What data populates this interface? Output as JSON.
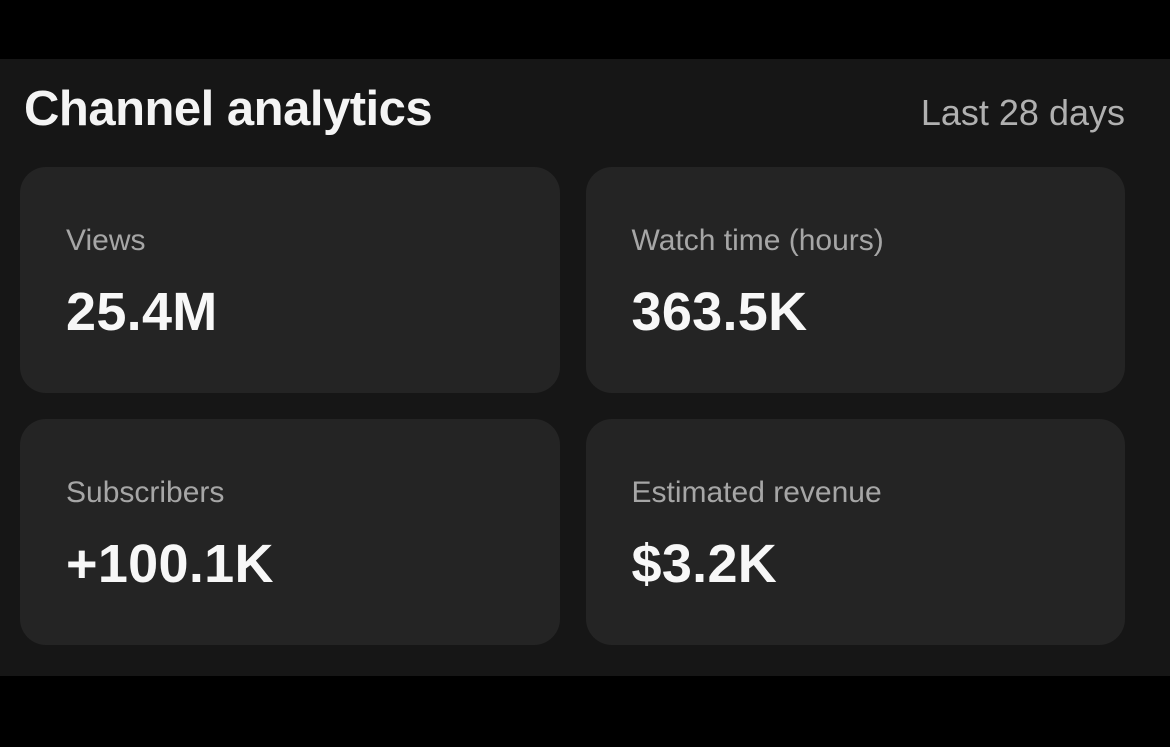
{
  "header": {
    "title": "Channel analytics",
    "period": "Last 28 days"
  },
  "cards": [
    {
      "label": "Views",
      "value": "25.4M"
    },
    {
      "label": "Watch time (hours)",
      "value": "363.5K"
    },
    {
      "label": "Subscribers",
      "value": "+100.1K"
    },
    {
      "label": "Estimated revenue",
      "value": "$3.2K"
    }
  ],
  "colors": {
    "page_background": "#000000",
    "content_background": "#161616",
    "card_background": "#242424",
    "label_gray": "#a6a6a6",
    "period_gray": "#b0b0b0",
    "value_white": "#f7f7f7"
  }
}
